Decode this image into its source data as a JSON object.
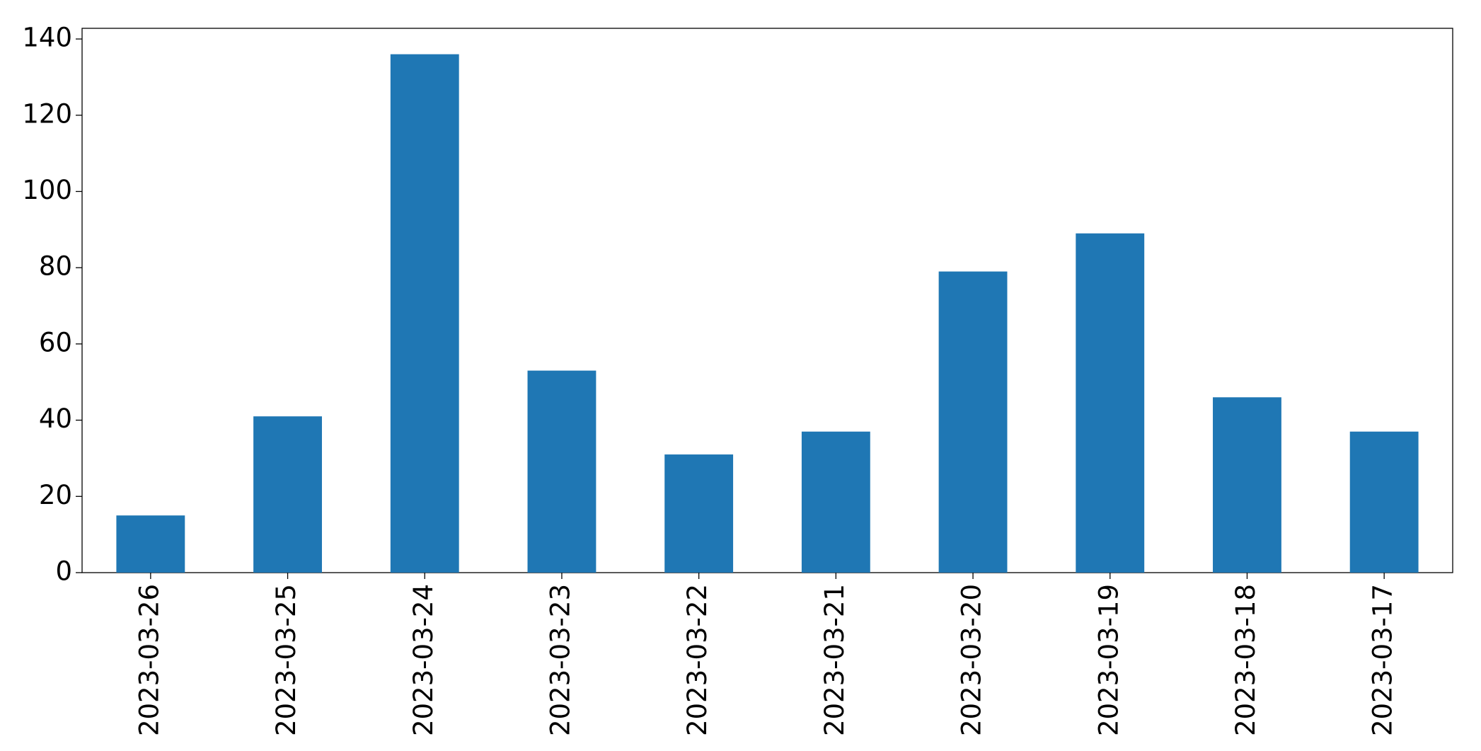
{
  "chart_data": {
    "type": "bar",
    "categories": [
      "2023-03-26",
      "2023-03-25",
      "2023-03-24",
      "2023-03-23",
      "2023-03-22",
      "2023-03-21",
      "2023-03-20",
      "2023-03-19",
      "2023-03-18",
      "2023-03-17"
    ],
    "values": [
      15,
      41,
      136,
      53,
      31,
      37,
      79,
      89,
      46,
      37
    ],
    "color": "#1f77b4",
    "ylim": [
      0,
      142.8
    ],
    "yticks": [
      0,
      20,
      40,
      60,
      80,
      100,
      120,
      140
    ],
    "grid": false
  }
}
